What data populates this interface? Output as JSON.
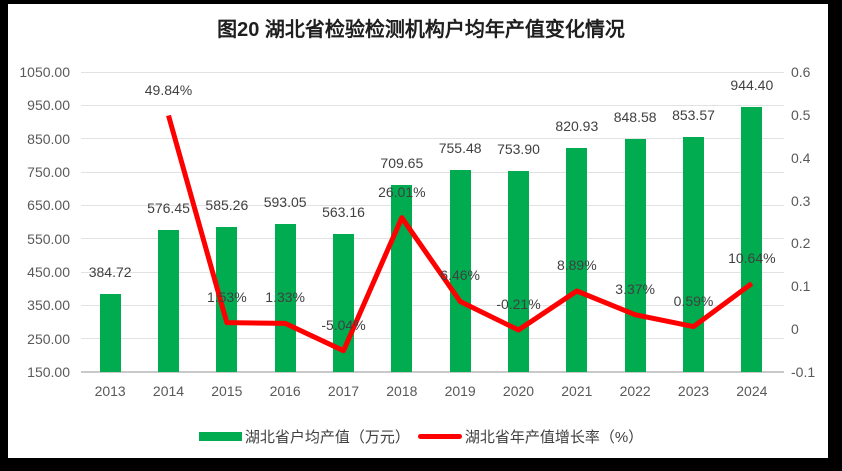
{
  "title": "图20 湖北省检验检测机构户均年产值变化情况",
  "legend": {
    "bar_label": "湖北省户均产值（万元）",
    "line_label": "湖北省年产值增长率（%）"
  },
  "colors": {
    "bar": "#00AC4F",
    "line": "#FF0000",
    "gridline": "#E2E2E2",
    "axis_line": "#C9C9C9",
    "tick_label": "#595959",
    "data_label": "#404040",
    "title": "#1F1F1F",
    "frame": "#000000",
    "background": "#FFFFFF"
  },
  "chart_data": {
    "type": "bar+line combo",
    "title": "图20 湖北省检验检测机构户均年产值变化情况",
    "categories": [
      "2013",
      "2014",
      "2015",
      "2016",
      "2017",
      "2018",
      "2019",
      "2020",
      "2021",
      "2022",
      "2023",
      "2024"
    ],
    "series": [
      {
        "name": "湖北省户均产值（万元）",
        "type": "bar",
        "axis": "left",
        "values": [
          384.72,
          576.45,
          585.26,
          593.05,
          563.16,
          709.65,
          755.48,
          753.9,
          820.93,
          848.58,
          853.57,
          944.4
        ],
        "labels": [
          "384.72",
          "576.45",
          "585.26",
          "593.05",
          "563.16",
          "709.65",
          "755.48",
          "753.90",
          "820.93",
          "848.58",
          "853.57",
          "944.40"
        ]
      },
      {
        "name": "湖北省年产值增长率（%）",
        "type": "line",
        "axis": "right",
        "values_percent": [
          null,
          49.84,
          1.53,
          1.33,
          -5.04,
          26.01,
          6.46,
          -0.21,
          8.89,
          3.37,
          0.59,
          10.64
        ],
        "labels": [
          null,
          "49.84%",
          "1.53%",
          "1.33%",
          "-5.04%",
          "26.01%",
          "6.46%",
          "-0.21%",
          "8.89%",
          "3.37%",
          "0.59%",
          "10.64%"
        ]
      }
    ],
    "left_axis": {
      "min": 150,
      "max": 1050,
      "ticks": [
        "1050.00",
        "950.00",
        "850.00",
        "750.00",
        "650.00",
        "550.00",
        "450.00",
        "350.00",
        "250.00",
        "150.00"
      ],
      "tick_values": [
        1050,
        950,
        850,
        750,
        650,
        550,
        450,
        350,
        250,
        150
      ]
    },
    "right_axis": {
      "min": -0.1,
      "max": 0.6,
      "ticks": [
        "0.6",
        "0.5",
        "0.4",
        "0.3",
        "0.2",
        "0.1",
        "0",
        "-0.1"
      ],
      "tick_values": [
        0.6,
        0.5,
        0.4,
        0.3,
        0.2,
        0.1,
        0,
        -0.1
      ]
    },
    "grid": true,
    "legend_position": "bottom"
  }
}
